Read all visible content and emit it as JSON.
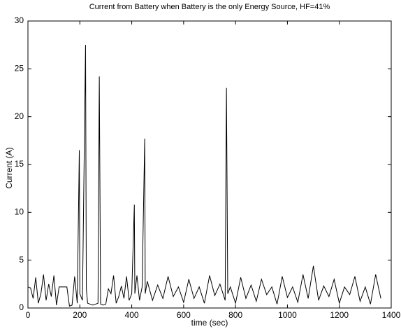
{
  "chart_data": {
    "type": "line",
    "title": "Current from Battery when Battery is the only Energy Source, HF=41%",
    "x_label": "time (sec)",
    "y_label": "Current (A)",
    "color": "#000000",
    "xlim": [
      0,
      1400
    ],
    "xticks": [
      0,
      200,
      400,
      600,
      800,
      1000,
      1200,
      1400
    ],
    "ylim": [
      0,
      30
    ],
    "yticks": [
      0,
      5,
      10,
      15,
      20,
      25,
      30
    ],
    "x": [
      0,
      10,
      20,
      30,
      40,
      50,
      60,
      70,
      80,
      90,
      100,
      110,
      120,
      130,
      140,
      150,
      160,
      170,
      180,
      190,
      198,
      200,
      210,
      222,
      225,
      230,
      240,
      250,
      260,
      270,
      275,
      280,
      290,
      300,
      310,
      320,
      330,
      340,
      350,
      360,
      370,
      380,
      390,
      400,
      410,
      412,
      420,
      430,
      440,
      450,
      452,
      460,
      480,
      500,
      520,
      540,
      560,
      580,
      600,
      620,
      640,
      660,
      680,
      700,
      720,
      740,
      760,
      765,
      770,
      780,
      800,
      820,
      840,
      860,
      880,
      900,
      920,
      940,
      960,
      980,
      1000,
      1020,
      1040,
      1060,
      1080,
      1100,
      1120,
      1140,
      1160,
      1180,
      1200,
      1220,
      1240,
      1260,
      1280,
      1300,
      1320,
      1340,
      1360
    ],
    "values": [
      2.2,
      2.1,
      1.0,
      3.2,
      0.5,
      1.5,
      3.5,
      0.8,
      2.5,
      1.2,
      3.4,
      0.3,
      2.2,
      2.2,
      2.2,
      2.2,
      0.2,
      0.3,
      3.3,
      0.5,
      16.5,
      1.5,
      0.8,
      27.5,
      2.0,
      0.5,
      0.4,
      0.3,
      0.4,
      0.5,
      24.2,
      0.4,
      0.3,
      0.4,
      2.0,
      1.5,
      3.4,
      0.5,
      1.2,
      2.3,
      1.0,
      3.3,
      0.8,
      1.5,
      10.8,
      1.5,
      3.4,
      0.8,
      2.2,
      17.7,
      1.5,
      2.8,
      0.8,
      2.4,
      1.0,
      3.3,
      1.2,
      2.2,
      0.6,
      3.0,
      1.0,
      2.2,
      0.5,
      3.4,
      1.3,
      2.5,
      0.8,
      23.0,
      1.5,
      2.2,
      0.5,
      3.2,
      1.0,
      2.4,
      0.7,
      3.0,
      1.4,
      2.2,
      0.4,
      3.3,
      1.1,
      2.2,
      0.6,
      3.5,
      1.0,
      4.4,
      0.8,
      2.3,
      1.2,
      3.0,
      0.5,
      2.2,
      1.4,
      3.3,
      0.7,
      2.2,
      0.4,
      3.5,
      1.0
    ]
  }
}
